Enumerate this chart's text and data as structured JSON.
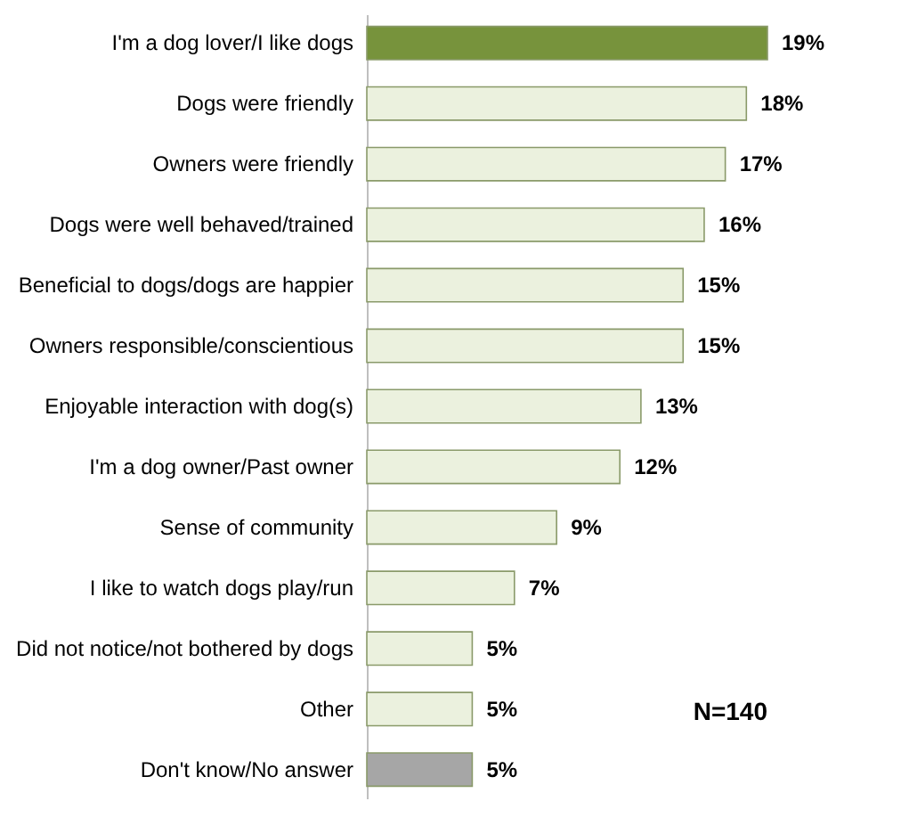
{
  "chart_data": {
    "type": "bar",
    "orientation": "horizontal",
    "categories": [
      "I'm a dog lover/I like dogs",
      "Dogs were friendly",
      "Owners were friendly",
      "Dogs were well behaved/trained",
      "Beneficial to dogs/dogs are happier",
      "Owners responsible/conscientious",
      "Enjoyable interaction with dog(s)",
      "I'm a dog owner/Past owner",
      "Sense of community",
      "I like to watch dogs play/run",
      "Did not notice/not bothered by dogs",
      "Other",
      "Don't know/No answer"
    ],
    "values": [
      19,
      18,
      17,
      16,
      15,
      15,
      13,
      12,
      9,
      7,
      5,
      5,
      5
    ],
    "value_labels": [
      "19%",
      "18%",
      "17%",
      "16%",
      "15%",
      "15%",
      "13%",
      "12%",
      "9%",
      "7%",
      "5%",
      "5%",
      "5%"
    ],
    "colors": [
      "#77933c",
      "#ebf1de",
      "#ebf1de",
      "#ebf1de",
      "#ebf1de",
      "#ebf1de",
      "#ebf1de",
      "#ebf1de",
      "#ebf1de",
      "#ebf1de",
      "#ebf1de",
      "#ebf1de",
      "#a6a6a6"
    ],
    "annotations": [
      "N=140"
    ]
  }
}
